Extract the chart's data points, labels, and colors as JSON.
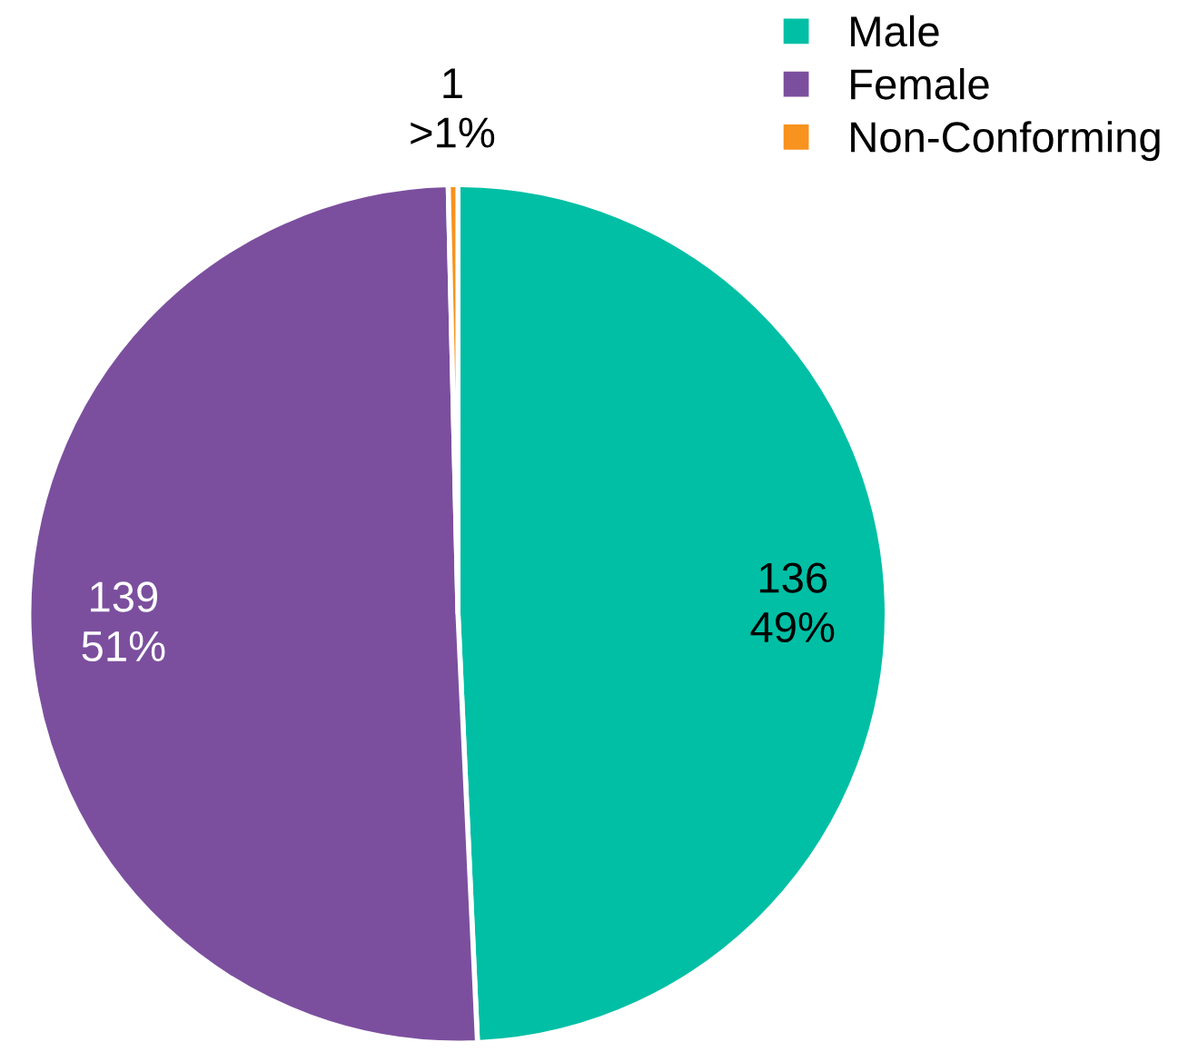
{
  "chart_data": {
    "type": "pie",
    "categories": [
      "Male",
      "Female",
      "Non-Conforming"
    ],
    "values": [
      136,
      139,
      1
    ],
    "colors": [
      "#00bfa5",
      "#7b4f9e",
      "#f7931e"
    ],
    "value_labels": [
      "136\n49%",
      "139\n51%",
      "1\n>1%"
    ],
    "legend": "top right"
  }
}
